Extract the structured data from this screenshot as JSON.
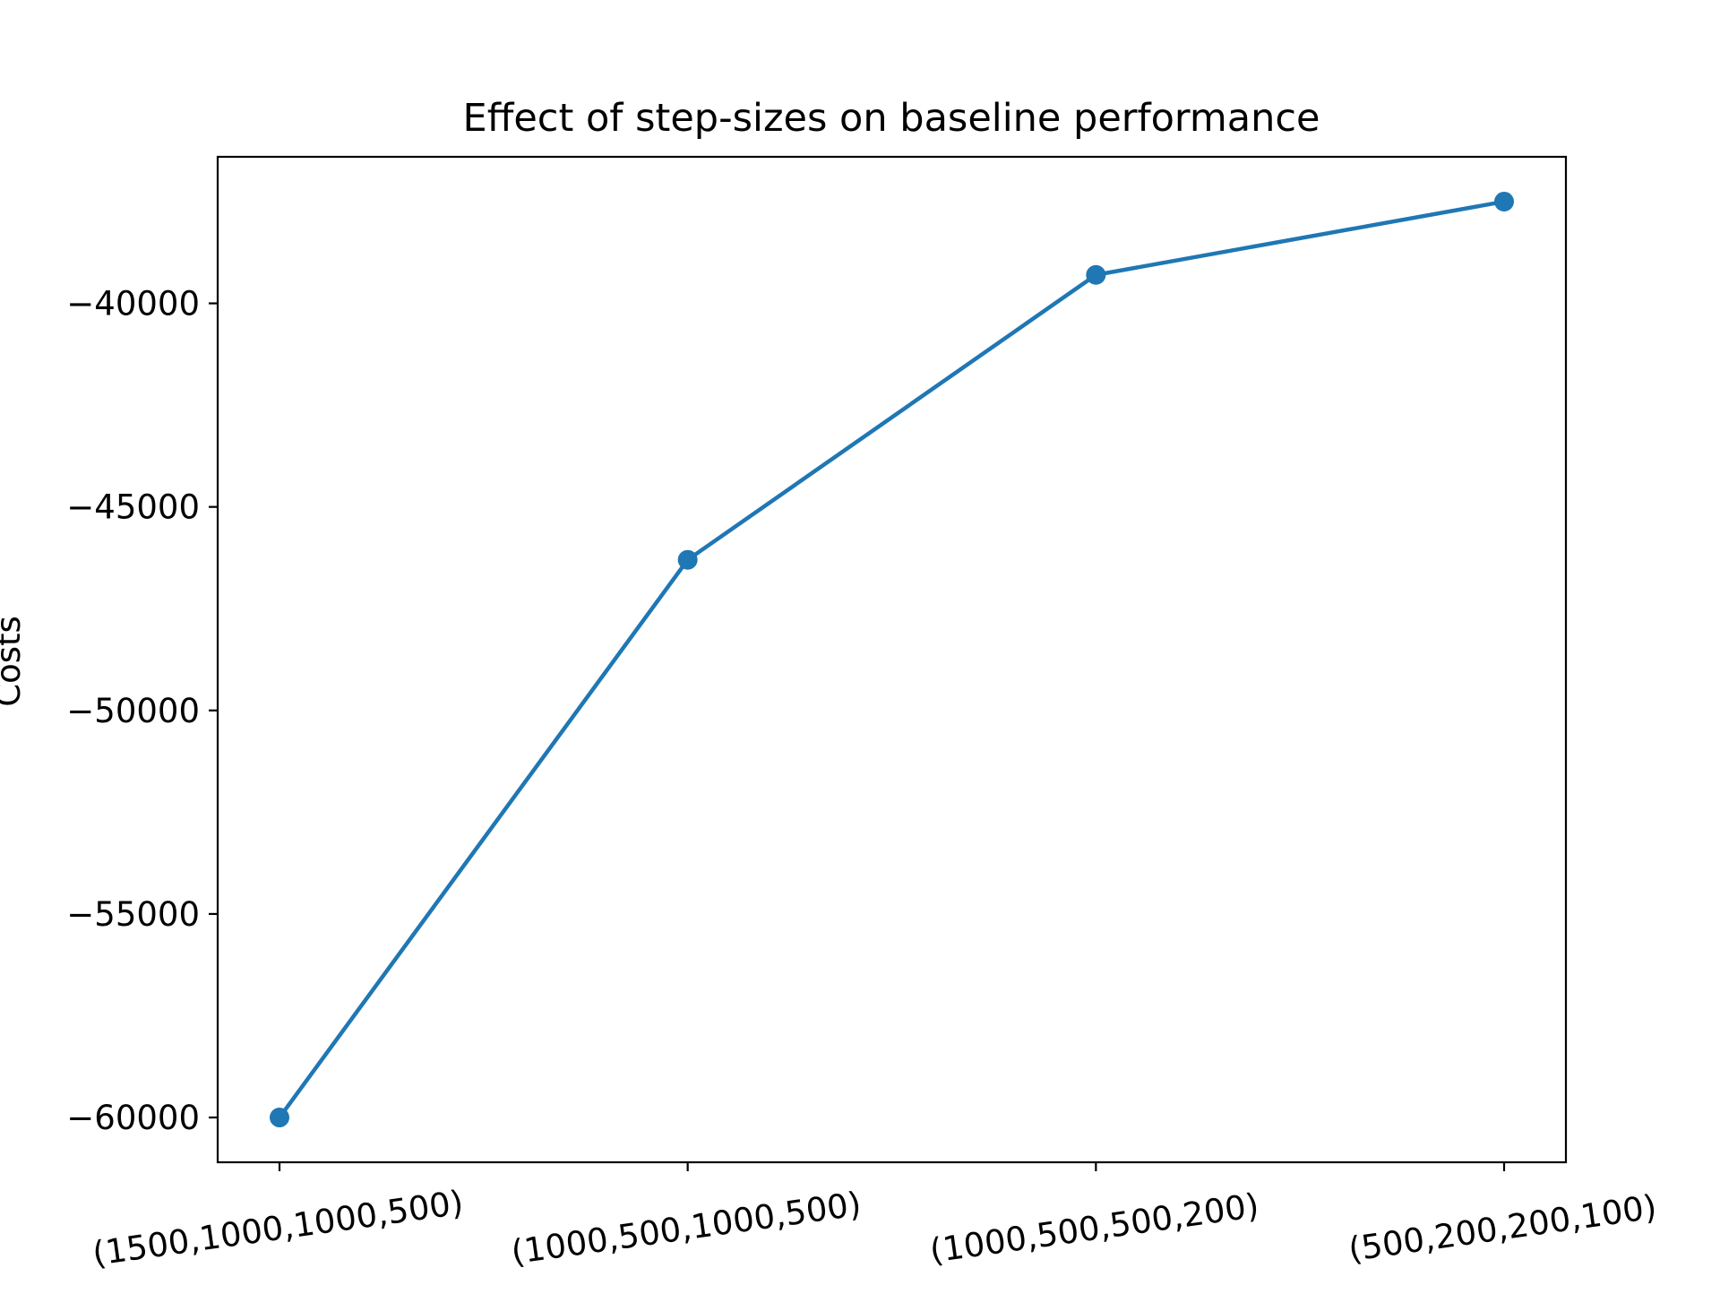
{
  "chart_data": {
    "type": "line",
    "title": "Effect of step-sizes on baseline performance",
    "xlabel": "",
    "ylabel": "Costs",
    "categories": [
      "(1500,1000,1000,500)",
      "(1000,500,1000,500)",
      "(1000,500,500,200)",
      "(500,200,200,100)"
    ],
    "series": [
      {
        "values": [
          -60000,
          -46300,
          -39300,
          -37500
        ]
      }
    ],
    "ylim": [
      -61100,
      -36400
    ],
    "yticks": [
      -60000,
      -55000,
      -50000,
      -45000,
      -40000
    ],
    "ytick_labels": [
      "−60000",
      "−55000",
      "−50000",
      "−45000",
      "−40000"
    ],
    "grid": false,
    "legend": "none",
    "line_color": "#1f77b4",
    "marker": "circle"
  }
}
